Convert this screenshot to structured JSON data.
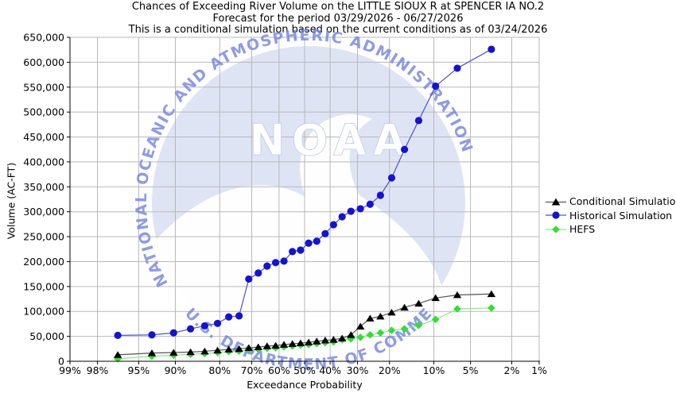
{
  "watermark": {
    "acronym": "NOAA",
    "top_text": "NATIONAL OCEANIC AND ATMOSPHERIC ADMINISTRATION",
    "bottom_text": "U.S. DEPARTMENT OF COMMERCE"
  },
  "colors": {
    "background": "#ffffff",
    "grid": "#b8b8b8",
    "axis": "#000000",
    "watermark_circle": "#dfe4f5",
    "watermark_gull": "#ffffff",
    "watermark_text": "#7384de",
    "watermark_letters": "#ffffff"
  },
  "chart_data": {
    "type": "line",
    "title": "Chances of Exceeding River Volume on the LITTLE SIOUX R at SPENCER IA NO.2",
    "subtitle": "Forecast for the period 03/29/2026 - 06/27/2026",
    "subtitle2": "This is a conditional simulation based on the current conditions as of 03/24/2026",
    "xlabel": "Exceedance Probability",
    "ylabel": "Volume (AC-FT)",
    "x_scale": "probit",
    "x_axis_range_percent": [
      99,
      1
    ],
    "x_ticks_percent": [
      99,
      98,
      95,
      90,
      80,
      70,
      60,
      50,
      40,
      30,
      20,
      10,
      5,
      2,
      1
    ],
    "x_tick_labels": [
      "99%",
      "98%",
      "95%",
      "90%",
      "80%",
      "70%",
      "60%",
      "50%",
      "40%",
      "30%",
      "20%",
      "10%",
      "5%",
      "2%",
      "1%"
    ],
    "ylim": [
      0,
      650000
    ],
    "y_tick_step": 50000,
    "grid": true,
    "legend_position": "right",
    "x_percent": [
      96.8,
      93.5,
      90.3,
      87.1,
      83.9,
      80.6,
      77.4,
      74.2,
      71.0,
      67.7,
      64.5,
      61.3,
      58.1,
      54.8,
      51.6,
      48.4,
      45.2,
      41.9,
      38.7,
      35.5,
      32.3,
      29.0,
      25.8,
      22.6,
      19.4,
      16.1,
      12.9,
      9.7,
      6.5,
      3.2
    ],
    "series": [
      {
        "name": "Conditional Simulation",
        "marker": "triangle",
        "color": "#000000",
        "line_color": "#555555",
        "values": [
          13000,
          16500,
          17500,
          18500,
          20000,
          22000,
          24000,
          25000,
          27000,
          28500,
          30500,
          31500,
          33500,
          35000,
          36500,
          38000,
          40000,
          42000,
          43500,
          46000,
          53000,
          70000,
          86000,
          90000,
          98000,
          108000,
          116000,
          127000,
          133000,
          135000
        ]
      },
      {
        "name": "Historical Simulation",
        "marker": "circle",
        "color": "#1414cc",
        "line_color": "#5050d8",
        "values": [
          52000,
          53000,
          57000,
          65000,
          71000,
          76000,
          89000,
          91000,
          165000,
          177000,
          191000,
          198000,
          201000,
          220000,
          223000,
          237000,
          241000,
          256000,
          274000,
          290000,
          301000,
          306000,
          315000,
          333000,
          368000,
          425000,
          483000,
          552000,
          588000,
          626000
        ]
      },
      {
        "name": "HEFS",
        "marker": "diamond",
        "color": "#33dd33",
        "line_color": "#88e888",
        "values": [
          5000,
          10000,
          12000,
          14000,
          15500,
          17500,
          19500,
          20500,
          23000,
          24000,
          26000,
          27000,
          29000,
          30500,
          32500,
          33500,
          35500,
          37500,
          39000,
          43000,
          45000,
          48000,
          53000,
          57000,
          62000,
          65000,
          72000,
          84000,
          105000,
          107000
        ]
      }
    ]
  }
}
